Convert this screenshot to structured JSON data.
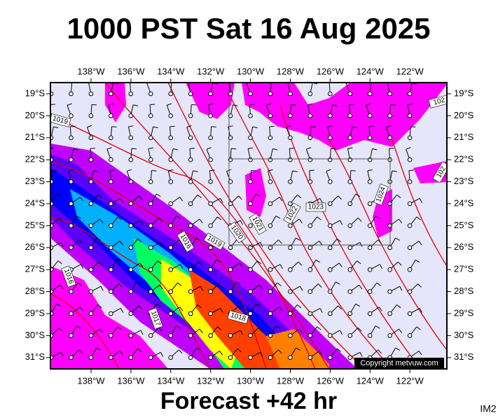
{
  "title": "1000 PST Sat 16 Aug 2025",
  "map": {
    "longitude_labels": [
      "138°W",
      "136°W",
      "134°W",
      "132°W",
      "130°W",
      "128°W",
      "126°W",
      "124°W",
      "122°W"
    ],
    "latitude_labels": [
      "19°S",
      "20°S",
      "21°S",
      "22°S",
      "23°S",
      "24°S",
      "25°S",
      "26°S",
      "27°S",
      "28°S",
      "29°S",
      "30°S",
      "31°S"
    ],
    "isobar_labels": [
      "1019",
      "102",
      "102",
      "1016",
      "1016",
      "1019",
      "1020",
      "1021",
      "1022",
      "1023",
      "1024",
      "1017",
      "1018"
    ],
    "copyright": "Copyright metvuw.com"
  },
  "footer": {
    "forecast": "Forecast +42 hr",
    "code": "IM2"
  }
}
